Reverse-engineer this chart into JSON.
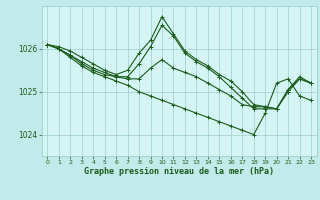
{
  "title": "Graphe pression niveau de la mer (hPa)",
  "background_color": "#c2eaea",
  "plot_bg_color": "#d5f5f5",
  "grid_color": "#9ecece",
  "line_color": "#1a5c1a",
  "xlim": [
    -0.5,
    23.5
  ],
  "ylim": [
    1023.5,
    1027.0
  ],
  "yticks": [
    1024,
    1025,
    1026
  ],
  "xticks": [
    0,
    1,
    2,
    3,
    4,
    5,
    6,
    7,
    8,
    9,
    10,
    11,
    12,
    13,
    14,
    15,
    16,
    17,
    18,
    19,
    20,
    21,
    22,
    23
  ],
  "series": [
    [
      1026.1,
      1026.0,
      1025.85,
      1025.7,
      1025.55,
      1025.45,
      1025.35,
      1025.3,
      1025.3,
      1025.55,
      1025.75,
      1025.55,
      1025.45,
      1025.35,
      1025.2,
      1025.05,
      1024.9,
      1024.7,
      1024.65,
      1024.65,
      1024.6,
      1025.05,
      1025.3,
      1025.2
    ],
    [
      1026.1,
      1026.0,
      1025.85,
      1025.65,
      1025.5,
      1025.4,
      1025.35,
      1025.35,
      1025.65,
      1026.05,
      1026.55,
      1026.3,
      1025.9,
      1025.7,
      1025.55,
      1025.35,
      1025.1,
      1024.85,
      1024.6,
      1024.6,
      1024.6,
      1025.0,
      1025.3,
      1025.2
    ],
    [
      1026.1,
      1026.05,
      1025.95,
      1025.8,
      1025.65,
      1025.5,
      1025.4,
      1025.5,
      1025.9,
      1026.2,
      1026.75,
      1026.35,
      1025.95,
      1025.75,
      1025.6,
      1025.4,
      1025.25,
      1025.0,
      1024.7,
      1024.65,
      1024.6,
      1025.05,
      1025.35,
      1025.2
    ],
    [
      1026.1,
      1026.0,
      1025.8,
      1025.6,
      1025.45,
      1025.35,
      1025.25,
      1025.15,
      1025.0,
      1024.9,
      1024.8,
      1024.7,
      1024.6,
      1024.5,
      1024.4,
      1024.3,
      1024.2,
      1024.1,
      1024.0,
      1024.5,
      1025.2,
      1025.3,
      1024.9,
      1024.8
    ]
  ]
}
